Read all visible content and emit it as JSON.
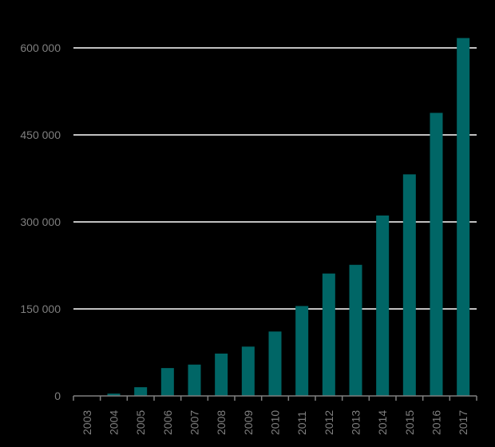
{
  "chart_data": {
    "type": "bar",
    "categories": [
      "2003",
      "2004",
      "2005",
      "2006",
      "2007",
      "2008",
      "2009",
      "2010",
      "2011",
      "2012",
      "2013",
      "2014",
      "2015",
      "2016",
      "2017"
    ],
    "values": [
      0,
      4000,
      15000,
      48000,
      54000,
      73000,
      85000,
      111000,
      155000,
      211000,
      226000,
      311000,
      382000,
      488000,
      617000
    ],
    "yticks": [
      0,
      150000,
      300000,
      450000,
      600000
    ],
    "ytick_labels": [
      "0",
      "150 000",
      "300 000",
      "450 000",
      "600 000"
    ],
    "ylim": [
      0,
      620000
    ],
    "grid": true,
    "title": "",
    "xlabel": "",
    "ylabel": "",
    "colors": {
      "bar": "#006666",
      "gridline": "#ffffff",
      "axis": "#7f7f7f",
      "tick_text": "#7f7f7f",
      "background": "#000000"
    }
  }
}
